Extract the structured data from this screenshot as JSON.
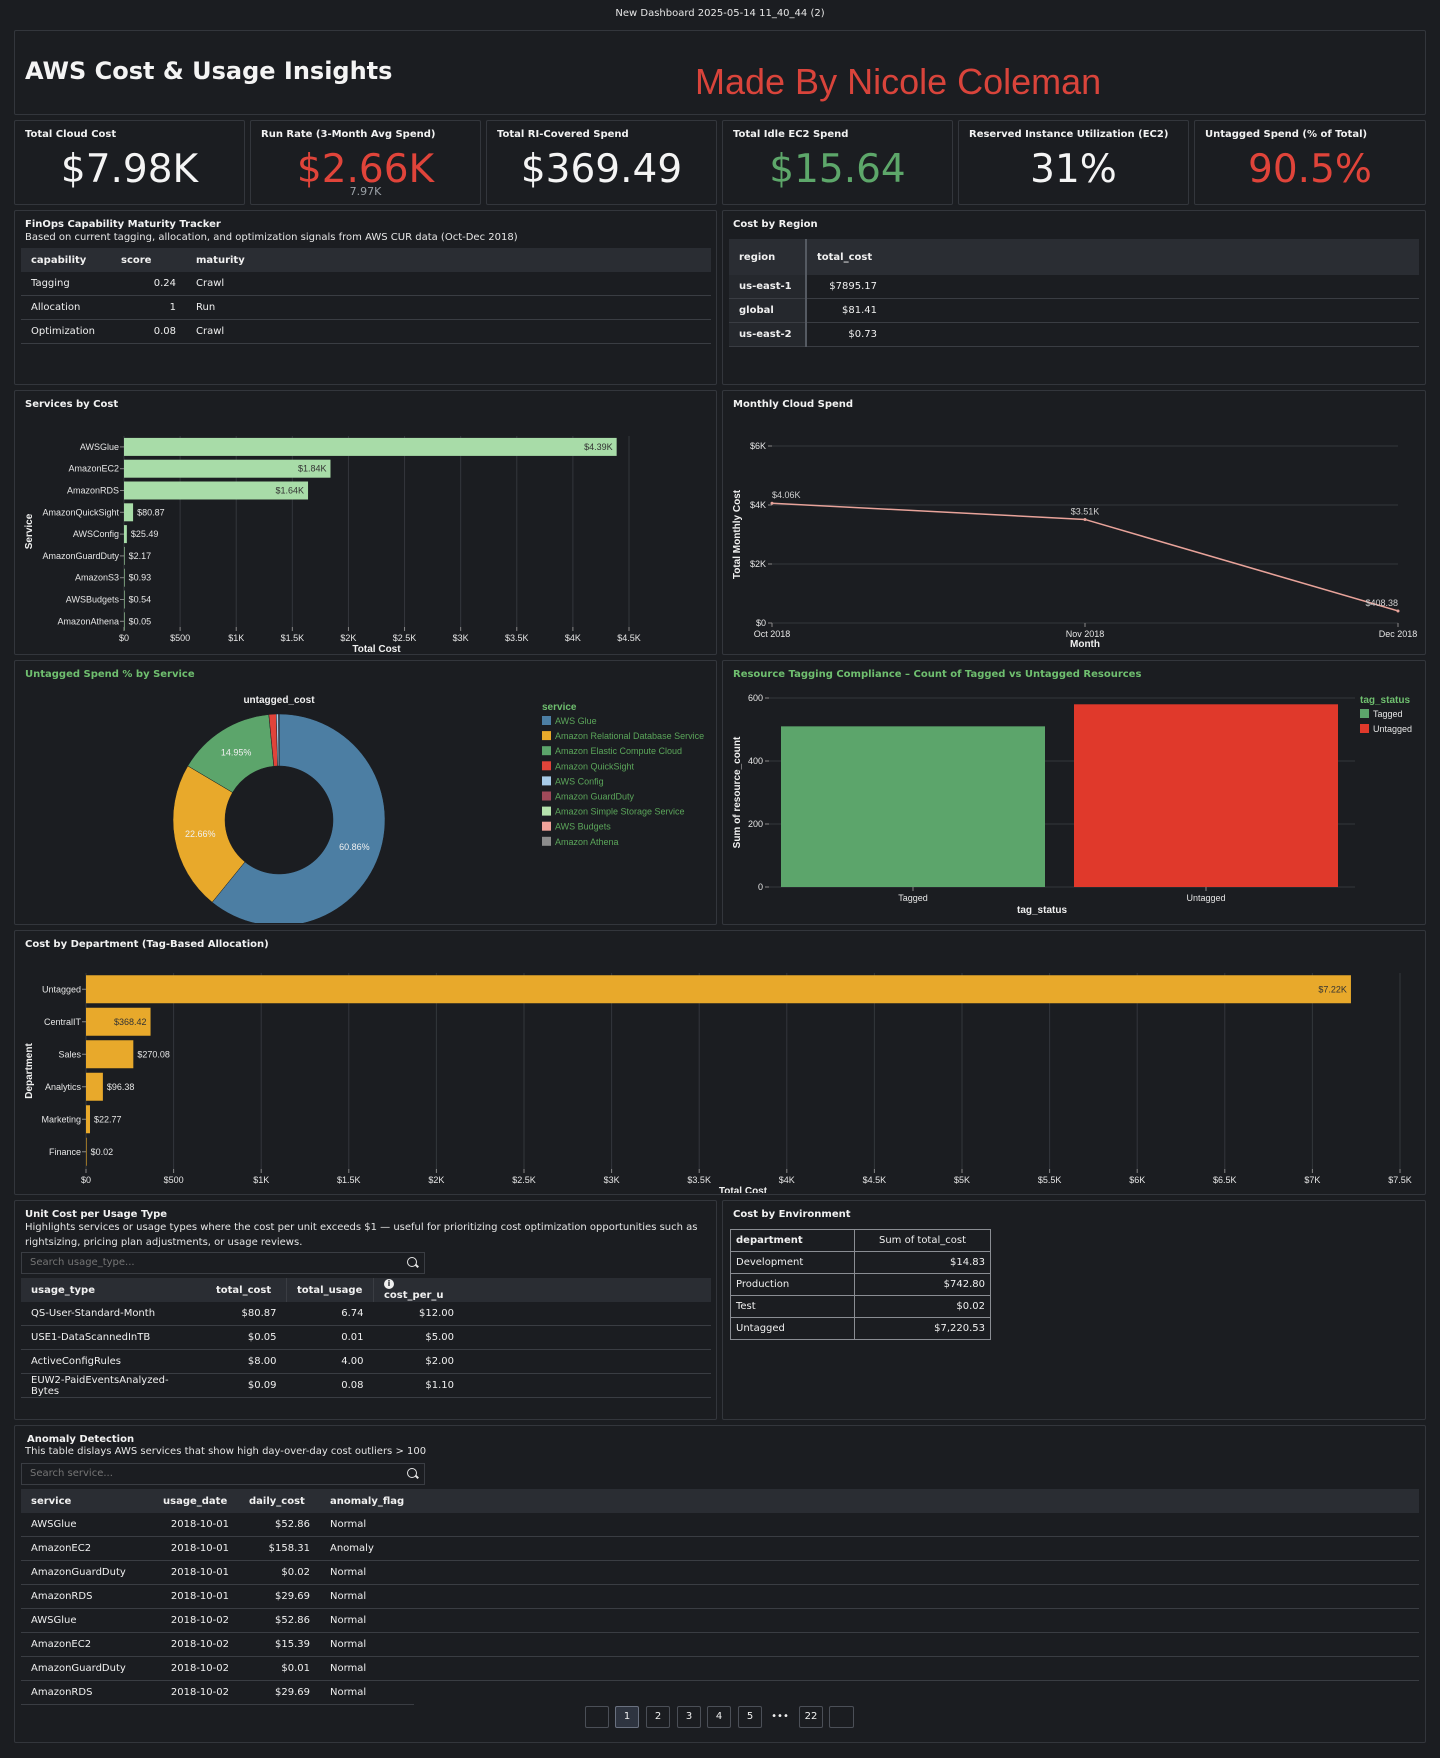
{
  "window_title": "New Dashboard 2025-05-14 11_40_44 (2)",
  "header": {
    "title": "AWS Cost & Usage Insights",
    "watermark": "Made By Nicole Coleman"
  },
  "kpis": [
    {
      "title": "Total Cloud Cost",
      "value": "$7.98K",
      "color": "#f4f4f4"
    },
    {
      "title": "Run Rate (3-Month Avg Spend)",
      "value": "$2.66K",
      "sub": "7.97K",
      "color": "#e0443a"
    },
    {
      "title": "Total RI-Covered Spend",
      "value": "$369.49",
      "color": "#f4f4f4"
    },
    {
      "title": "Total Idle EC2 Spend",
      "value": "$15.64",
      "color": "#5da76a"
    },
    {
      "title": "Reserved Instance Utilization (EC2)",
      "value": "31%",
      "color": "#f4f4f4"
    },
    {
      "title": "Untagged Spend (% of Total)",
      "value": "90.5%",
      "color": "#e0443a"
    }
  ],
  "finops": {
    "title": "FinOps Capability Maturity Tracker",
    "subtitle": "Based on current tagging, allocation, and optimization signals from AWS CUR data (Oct-Dec 2018)",
    "columns": [
      "capability",
      "score",
      "maturity"
    ],
    "rows": [
      {
        "capability": "Tagging",
        "score": "0.24",
        "maturity": "Crawl",
        "color": "#e0443a"
      },
      {
        "capability": "Allocation",
        "score": "1",
        "maturity": "Run",
        "color": "#5da76a"
      },
      {
        "capability": "Optimization",
        "score": "0.08",
        "maturity": "Crawl",
        "color": "#e0443a"
      }
    ]
  },
  "region": {
    "title": "Cost by Region",
    "columns": [
      "region",
      "total_cost"
    ],
    "rows": [
      {
        "region": "us-east-1",
        "total_cost": "$7895.17"
      },
      {
        "region": "global",
        "total_cost": "$81.41"
      },
      {
        "region": "us-east-2",
        "total_cost": "$0.73"
      }
    ]
  },
  "services_chart": {
    "title": "Services by Cost",
    "chart_data": {
      "type": "bar",
      "orientation": "horizontal",
      "categories": [
        "AWSGlue",
        "AmazonEC2",
        "AmazonRDS",
        "AmazonQuickSight",
        "AWSConfig",
        "AmazonGuardDuty",
        "AmazonS3",
        "AWSBudgets",
        "AmazonAthena"
      ],
      "values": [
        4390,
        1840,
        1640,
        80.87,
        25.49,
        2.17,
        0.93,
        0.54,
        0.05
      ],
      "labels": [
        "$4.39K",
        "$1.84K",
        "$1.64K",
        "$80.87",
        "$25.49",
        "$2.17",
        "$0.93",
        "$0.54",
        "$0.05"
      ],
      "xlabel": "Total Cost",
      "ylabel": "Service",
      "xlim": [
        0,
        4500
      ],
      "ticks": [
        "$0",
        "$500",
        "$1K",
        "$1.5K",
        "$2K",
        "$2.5K",
        "$3K",
        "$3.5K",
        "$4K",
        "$4.5K"
      ],
      "color": "#a8dca8",
      "grid": true
    }
  },
  "monthly_chart": {
    "title": "Monthly Cloud Spend",
    "chart_data": {
      "type": "line",
      "x": [
        "Oct 2018",
        "Nov 2018",
        "Dec 2018"
      ],
      "values": [
        4060,
        3510,
        408.38
      ],
      "labels": [
        "$4.06K",
        "$3.51K",
        "$408.38"
      ],
      "xlabel": "Month",
      "ylabel": "Total Monthly Cost",
      "ylim": [
        0,
        6000
      ],
      "ticks": [
        "$0",
        "$2K",
        "$4K",
        "$6K"
      ],
      "color": "#e8a39a",
      "grid": true
    }
  },
  "untagged_chart": {
    "title": "Untagged Spend % by Service",
    "chart_data": {
      "type": "pie",
      "title": "untagged_cost",
      "legend_title": "service",
      "legend_position": "right",
      "categories": [
        "AWS Glue",
        "Amazon Relational Database Service",
        "Amazon Elastic Compute Cloud",
        "Amazon QuickSight",
        "AWS Config",
        "Amazon GuardDuty",
        "Amazon Simple Storage Service",
        "AWS Budgets",
        "Amazon Athena"
      ],
      "values": [
        60.86,
        22.66,
        14.95,
        1.12,
        0.35,
        0.03,
        0.01,
        0.01,
        0.01
      ],
      "labels": [
        "60.86%",
        "22.66%",
        "14.95%",
        "",
        "",
        "",
        "",
        "",
        ""
      ],
      "colors": [
        "#4c7ea3",
        "#e8a92b",
        "#5ca56b",
        "#e0443a",
        "#a7cbe8",
        "#a04a5a",
        "#b5e2ad",
        "#f0a39a",
        "#8c8c8c"
      ]
    }
  },
  "tagging_chart": {
    "title": "Resource Tagging Compliance – Count of Tagged vs Untagged Resources",
    "chart_data": {
      "type": "bar",
      "categories": [
        "Tagged",
        "Untagged"
      ],
      "values": [
        510,
        580
      ],
      "xlabel": "tag_status",
      "ylabel": "Sum of resource_count",
      "ylim": [
        0,
        600
      ],
      "ticks": [
        "0",
        "200",
        "400",
        "600"
      ],
      "legend_title": "tag_status",
      "legend_position": "right",
      "colors": [
        "#5ca56b",
        "#e0392b"
      ]
    }
  },
  "department_chart": {
    "title": "Cost by Department (Tag-Based Allocation)",
    "chart_data": {
      "type": "bar",
      "orientation": "horizontal",
      "categories": [
        "Untagged",
        "CentralIT",
        "Sales",
        "Analytics",
        "Marketing",
        "Finance"
      ],
      "values": [
        7220,
        368.42,
        270.08,
        96.38,
        22.77,
        0.02
      ],
      "labels": [
        "$7.22K",
        "$368.42",
        "$270.08",
        "$96.38",
        "$22.77",
        "$0.02"
      ],
      "xlabel": "Total Cost",
      "ylabel": "Department",
      "xlim": [
        0,
        7500
      ],
      "ticks": [
        "$0",
        "$500",
        "$1K",
        "$1.5K",
        "$2K",
        "$2.5K",
        "$3K",
        "$3.5K",
        "$4K",
        "$4.5K",
        "$5K",
        "$5.5K",
        "$6K",
        "$6.5K",
        "$7K",
        "$7.5K"
      ],
      "color": "#e8a92b",
      "grid": true
    }
  },
  "unit_cost": {
    "title": "Unit Cost per Usage Type",
    "subtitle": "Highlights services or usage types where the cost per unit exceeds $1 — useful for prioritizing cost optimization opportunities such as rightsizing, pricing plan adjustments, or usage reviews.",
    "search_placeholder": "Search usage_type...",
    "columns": [
      "usage_type",
      "total_cost",
      "total_usage",
      "cost_per_u"
    ],
    "rows": [
      {
        "usage_type": "QS-User-Standard-Month",
        "total_cost": "$80.87",
        "total_usage": "6.74",
        "cost_per_u": "$12.00"
      },
      {
        "usage_type": "USE1-DataScannedInTB",
        "total_cost": "$0.05",
        "total_usage": "0.01",
        "cost_per_u": "$5.00"
      },
      {
        "usage_type": "ActiveConfigRules",
        "total_cost": "$8.00",
        "total_usage": "4.00",
        "cost_per_u": "$2.00"
      },
      {
        "usage_type": "EUW2-PaidEventsAnalyzed-Bytes",
        "total_cost": "$0.09",
        "total_usage": "0.08",
        "cost_per_u": "$1.10"
      }
    ]
  },
  "environment": {
    "title": "Cost by Environment",
    "columns": [
      "department",
      "Sum of total_cost"
    ],
    "rows": [
      {
        "department": "Development",
        "cost": "$14.83"
      },
      {
        "department": "Production",
        "cost": "$742.80"
      },
      {
        "department": "Test",
        "cost": "$0.02"
      },
      {
        "department": "Untagged",
        "cost": "$7,220.53"
      }
    ]
  },
  "anomaly": {
    "title": "Anomaly Detection",
    "subtitle": "This table dislays AWS services that show high day-over-day cost outliers > 100",
    "search_placeholder": "Search service...",
    "columns": [
      "service",
      "usage_date",
      "daily_cost",
      "anomaly_flag"
    ],
    "rows": [
      {
        "service": "AWSGlue",
        "usage_date": "2018-10-01",
        "daily_cost": "$52.86",
        "anomaly_flag": "Normal",
        "color": "#5da76a"
      },
      {
        "service": "AmazonEC2",
        "usage_date": "2018-10-01",
        "daily_cost": "$158.31",
        "anomaly_flag": "Anomaly",
        "color": "#e0443a"
      },
      {
        "service": "AmazonGuardDuty",
        "usage_date": "2018-10-01",
        "daily_cost": "$0.02",
        "anomaly_flag": "Normal",
        "color": "#5da76a"
      },
      {
        "service": "AmazonRDS",
        "usage_date": "2018-10-01",
        "daily_cost": "$29.69",
        "anomaly_flag": "Normal",
        "color": "#5da76a"
      },
      {
        "service": "AWSGlue",
        "usage_date": "2018-10-02",
        "daily_cost": "$52.86",
        "anomaly_flag": "Normal",
        "color": "#5da76a"
      },
      {
        "service": "AmazonEC2",
        "usage_date": "2018-10-02",
        "daily_cost": "$15.39",
        "anomaly_flag": "Normal",
        "color": "#5da76a"
      },
      {
        "service": "AmazonGuardDuty",
        "usage_date": "2018-10-02",
        "daily_cost": "$0.01",
        "anomaly_flag": "Normal",
        "color": "#5da76a"
      },
      {
        "service": "AmazonRDS",
        "usage_date": "2018-10-02",
        "daily_cost": "$29.69",
        "anomaly_flag": "Normal",
        "color": "#5da76a"
      }
    ],
    "pagination": {
      "pages": [
        "1",
        "2",
        "3",
        "4",
        "5"
      ],
      "ellipsis": "•••",
      "last": "22",
      "active": "1"
    }
  }
}
